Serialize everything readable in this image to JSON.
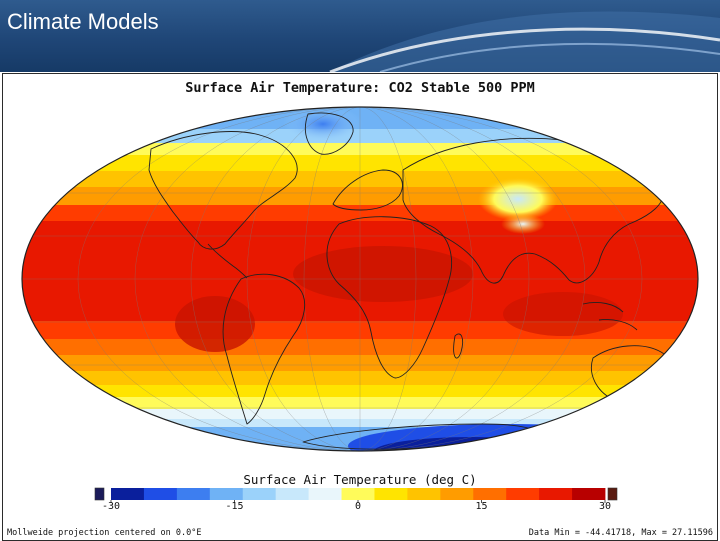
{
  "slide": {
    "title": "Climate Models"
  },
  "map": {
    "title": "Surface Air Temperature: CO2 Stable 500 PPM",
    "projection_note": "Mollweide projection centered on 0.0°E",
    "data_range_note": "Data Min = -44.41718, Max = 27.11596"
  },
  "colorbar": {
    "title": "Surface Air Temperature (deg C)",
    "ticks": [
      "-30",
      "-15",
      "0",
      "15",
      "30"
    ],
    "tick_values": [
      -30,
      -15,
      0,
      15,
      30
    ],
    "range": [
      -30,
      30
    ],
    "colors": [
      "#0a1f9c",
      "#1f4ee6",
      "#3d7ef0",
      "#6fb2f5",
      "#9bd2fa",
      "#c8e8fb",
      "#e9f6fb",
      "#fffb5a",
      "#ffe400",
      "#ffc300",
      "#ff9c00",
      "#ff6f00",
      "#ff3c00",
      "#e81800",
      "#b80000"
    ],
    "under_color": "#1b1b5a",
    "over_color": "#5a1b10"
  }
}
